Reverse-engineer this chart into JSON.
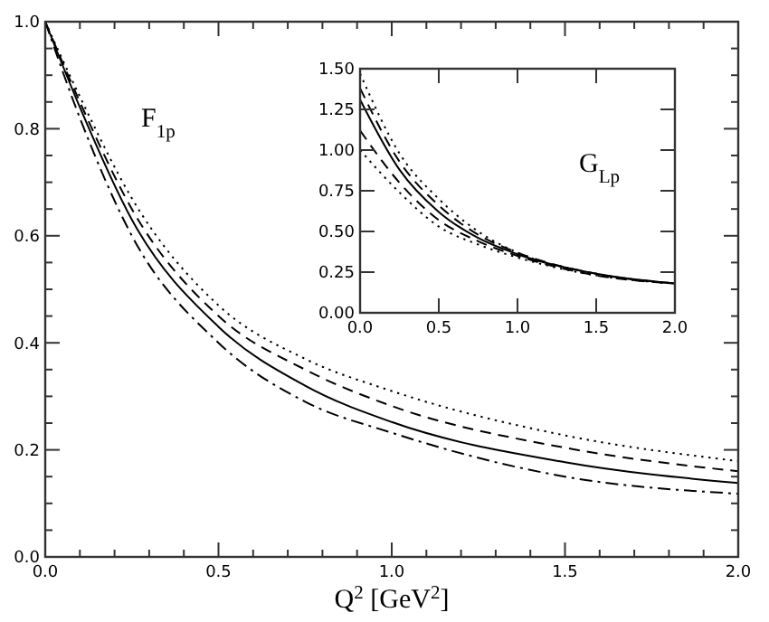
{
  "chart_data": [
    {
      "type": "line",
      "xlabel": "Q$^{2}$ [GeV$^{2}$]",
      "annotations": [
        "F$_{1p}$"
      ],
      "xlim": [
        0,
        2
      ],
      "ylim": [
        0,
        1
      ],
      "xticks": [
        {
          "value": 0,
          "label": "0.0"
        },
        {
          "value": 0.1,
          "label": null
        },
        {
          "value": 0.2,
          "label": null
        },
        {
          "value": 0.3,
          "label": null
        },
        {
          "value": 0.4,
          "label": null
        },
        {
          "value": 0.5,
          "label": "0.5"
        },
        {
          "value": 0.6,
          "label": null
        },
        {
          "value": 0.7,
          "label": null
        },
        {
          "value": 0.8,
          "label": null
        },
        {
          "value": 0.9,
          "label": null
        },
        {
          "value": 1,
          "label": "1.0"
        },
        {
          "value": 1.1,
          "label": null
        },
        {
          "value": 1.2,
          "label": null
        },
        {
          "value": 1.3,
          "label": null
        },
        {
          "value": 1.4,
          "label": null
        },
        {
          "value": 1.5,
          "label": "1.5"
        },
        {
          "value": 1.6,
          "label": null
        },
        {
          "value": 1.7,
          "label": null
        },
        {
          "value": 1.8,
          "label": null
        },
        {
          "value": 1.9,
          "label": null
        },
        {
          "value": 2,
          "label": "2.0"
        }
      ],
      "yticks": [
        {
          "value": 0,
          "label": "0.0"
        },
        {
          "value": 0.05,
          "label": null
        },
        {
          "value": 0.1,
          "label": null
        },
        {
          "value": 0.15,
          "label": null
        },
        {
          "value": 0.2,
          "label": "0.2"
        },
        {
          "value": 0.25,
          "label": null
        },
        {
          "value": 0.3,
          "label": null
        },
        {
          "value": 0.35,
          "label": null
        },
        {
          "value": 0.4,
          "label": "0.4"
        },
        {
          "value": 0.45,
          "label": null
        },
        {
          "value": 0.5,
          "label": null
        },
        {
          "value": 0.55,
          "label": null
        },
        {
          "value": 0.6,
          "label": "0.6"
        },
        {
          "value": 0.65,
          "label": null
        },
        {
          "value": 0.7,
          "label": null
        },
        {
          "value": 0.75,
          "label": null
        },
        {
          "value": 0.8,
          "label": "0.8"
        },
        {
          "value": 0.85,
          "label": null
        },
        {
          "value": 0.9,
          "label": null
        },
        {
          "value": 0.95,
          "label": null
        },
        {
          "value": 1,
          "label": "1.0"
        }
      ],
      "x": [
        0,
        0.1,
        0.25,
        0.5,
        0.75,
        1,
        1.5,
        2
      ],
      "series": [
        {
          "color": "#000000",
          "line_style": "solid",
          "values": [
            1,
            0.84,
            0.63,
            0.43,
            0.32,
            0.252,
            0.177,
            0.138
          ]
        },
        {
          "color": "#000000",
          "line_style": "dashed",
          "values": [
            1,
            0.85,
            0.65,
            0.45,
            0.35,
            0.282,
            0.204,
            0.16
          ]
        },
        {
          "color": "#000000",
          "line_style": "dotted",
          "values": [
            1,
            0.86,
            0.67,
            0.47,
            0.37,
            0.31,
            0.227,
            0.179
          ]
        },
        {
          "color": "#000000",
          "line_style": "dashdot",
          "values": [
            1,
            0.82,
            0.6,
            0.4,
            0.29,
            0.232,
            0.15,
            0.118
          ]
        }
      ],
      "grid": false
    },
    {
      "type": "line",
      "annotations": [
        "G$_{Lp}$"
      ],
      "xlim": [
        0,
        2
      ],
      "ylim": [
        0,
        1.5
      ],
      "xticks": [
        {
          "value": 0,
          "label": "0.0"
        },
        {
          "value": 0.5,
          "label": "0.5"
        },
        {
          "value": 1,
          "label": "1.0"
        },
        {
          "value": 1.5,
          "label": "1.5"
        },
        {
          "value": 2,
          "label": "2.0"
        }
      ],
      "yticks": [
        {
          "value": 0,
          "label": "0.00"
        },
        0.25,
        {
          "value": 0.5,
          "label": "0.50"
        },
        0.75,
        {
          "value": 1,
          "label": "1.00"
        },
        1.25,
        {
          "value": 1.5,
          "label": "1.50"
        }
      ],
      "x": [
        0,
        0.25,
        0.5,
        0.75,
        1,
        1.5,
        2
      ],
      "series": [
        {
          "color": "#000000",
          "line_style": "dotted",
          "values": [
            1.47,
            0.98,
            0.7,
            0.5,
            0.37,
            0.24,
            0.18
          ]
        },
        {
          "color": "#000000",
          "line_style": "dashed",
          "values": [
            1.38,
            0.93,
            0.66,
            0.48,
            0.37,
            0.24,
            0.18
          ]
        },
        {
          "color": "#000000",
          "line_style": "solid",
          "values": [
            1.31,
            0.88,
            0.62,
            0.46,
            0.36,
            0.24,
            0.18
          ]
        },
        {
          "color": "#000000",
          "line_style": "dashed",
          "values": [
            1.12,
            0.8,
            0.57,
            0.44,
            0.35,
            0.23,
            0.18
          ]
        },
        {
          "color": "#000000",
          "line_style": "dotted",
          "values": [
            1.0,
            0.74,
            0.53,
            0.42,
            0.34,
            0.23,
            0.18
          ]
        }
      ],
      "grid": false
    }
  ]
}
